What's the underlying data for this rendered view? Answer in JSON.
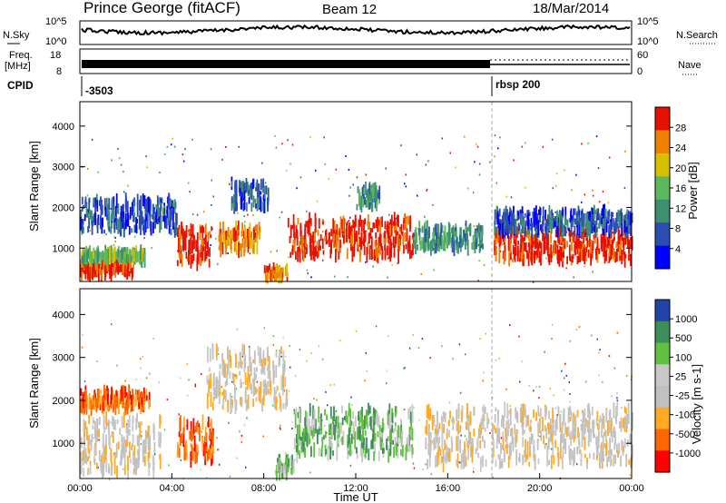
{
  "header": {
    "station": "Prince George (fitACF)",
    "beam": "Beam 12",
    "date": "18/Mar/2014"
  },
  "status_panels": {
    "nsky_label": "N.Sky",
    "nsky_ticks": [
      "10^5",
      "10^0"
    ],
    "nsearch_label": "N.Search",
    "nsearch_ticks": [
      "10^5",
      "10^0"
    ],
    "freq_label_1": "Freq.",
    "freq_label_2": "[MHz]",
    "freq_ticks": [
      "18",
      "8"
    ],
    "nave_label": "Nave",
    "nave_ticks": [
      "60",
      "0"
    ],
    "cpid_label": "CPID",
    "cpid_values": [
      "-3503",
      "rbsp 200"
    ]
  },
  "chart_data": [
    {
      "type": "heatmap",
      "name": "Power",
      "ylabel": "Slant Range [km]",
      "yticks": [
        "4000",
        "3000",
        "2000",
        "1000"
      ],
      "ylim": [
        180,
        4600
      ],
      "xlim": [
        0,
        24
      ],
      "colorbar": {
        "label": "Power [dB]",
        "ticks": [
          "28",
          "24",
          "20",
          "16",
          "12",
          "8",
          "4"
        ],
        "colors": [
          "#0000ff",
          "#2b4fb0",
          "#3d8f70",
          "#5cb85c",
          "#d8c000",
          "#f08000",
          "#e81000"
        ]
      },
      "regions": [
        {
          "t0": 0.0,
          "t1": 2.3,
          "r0": 350,
          "r1": 650,
          "level": 6
        },
        {
          "t0": 0.0,
          "t1": 2.8,
          "r0": 700,
          "r1": 900,
          "level": 3
        },
        {
          "t0": 0.0,
          "t1": 4.2,
          "r0": 1400,
          "r1": 2200,
          "level": 1
        },
        {
          "t0": 4.2,
          "t1": 5.7,
          "r0": 600,
          "r1": 1500,
          "level": 6
        },
        {
          "t0": 6.0,
          "t1": 7.8,
          "r0": 900,
          "r1": 1500,
          "level": 5
        },
        {
          "t0": 8.0,
          "t1": 9.0,
          "r0": 300,
          "r1": 500,
          "level": 5
        },
        {
          "t0": 9.0,
          "t1": 14.5,
          "r0": 800,
          "r1": 1700,
          "level": 6
        },
        {
          "t0": 14.5,
          "t1": 17.5,
          "r0": 1000,
          "r1": 1500,
          "level": 2
        },
        {
          "t0": 18.0,
          "t1": 24.0,
          "r0": 700,
          "r1": 1400,
          "level": 6
        },
        {
          "t0": 18.0,
          "t1": 24.0,
          "r0": 1400,
          "r1": 1900,
          "level": 1
        },
        {
          "t0": 6.5,
          "t1": 8.2,
          "r0": 2000,
          "r1": 2600,
          "level": 1
        },
        {
          "t0": 12.0,
          "t1": 13.0,
          "r0": 2000,
          "r1": 2500,
          "level": 2
        }
      ]
    },
    {
      "type": "heatmap",
      "name": "Velocity",
      "ylabel": "Slant Range [km]",
      "yticks": [
        "4000",
        "3000",
        "2000",
        "1000"
      ],
      "ylim": [
        180,
        4600
      ],
      "xlim": [
        0,
        24
      ],
      "xticks": [
        "00:00",
        "04:00",
        "08:00",
        "12:00",
        "16:00",
        "20:00",
        "00:00"
      ],
      "xlabel": "Time UT",
      "colorbar": {
        "label": "Velocity [m s-1]",
        "ticks": [
          "1000",
          "500",
          "100",
          "25",
          "-25",
          "-100",
          "-500",
          "-1000"
        ],
        "colors": [
          "#ff0000",
          "#ff6600",
          "#ffaa22",
          "#c0c0c0",
          "#c8c8c8",
          "#60c040",
          "#3e8e5a",
          "#2244aa"
        ]
      },
      "regions": [
        {
          "t0": 0.0,
          "t1": 3.5,
          "r0": 300,
          "r1": 1600,
          "level": 3
        },
        {
          "t0": 0.0,
          "t1": 3.0,
          "r0": 1800,
          "r1": 2200,
          "level": 1
        },
        {
          "t0": 4.2,
          "t1": 5.8,
          "r0": 600,
          "r1": 1500,
          "level": 1
        },
        {
          "t0": 9.3,
          "t1": 14.5,
          "r0": 700,
          "r1": 1800,
          "level": 5
        },
        {
          "t0": 15.0,
          "t1": 24.0,
          "r0": 500,
          "r1": 1800,
          "level": 3
        },
        {
          "t0": 5.5,
          "t1": 9.0,
          "r0": 1800,
          "r1": 3200,
          "level": 3
        },
        {
          "t0": 8.5,
          "t1": 9.3,
          "r0": 300,
          "r1": 600,
          "level": 5
        }
      ]
    }
  ]
}
